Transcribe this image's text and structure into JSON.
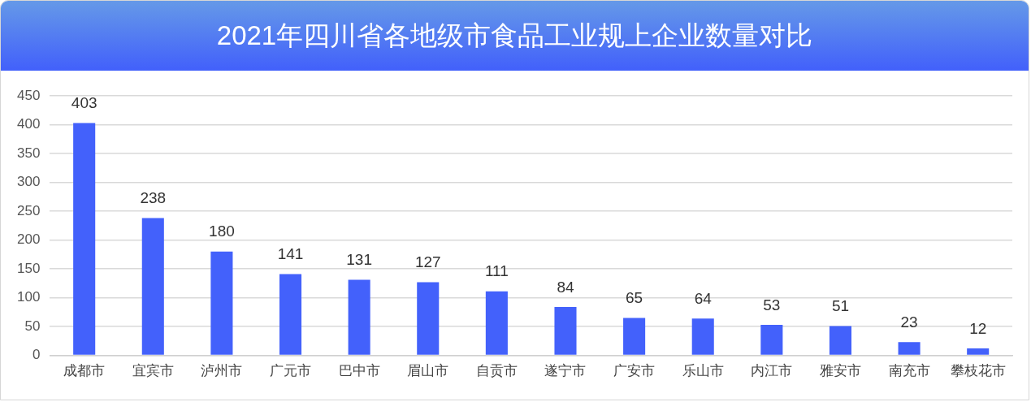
{
  "chart_data": {
    "type": "bar",
    "title": "2021年四川省各地级市食品工业规上企业数量对比",
    "categories": [
      "成都市",
      "宜宾市",
      "泸州市",
      "广元市",
      "巴中市",
      "眉山市",
      "自贡市",
      "遂宁市",
      "广安市",
      "乐山市",
      "内江市",
      "雅安市",
      "南充市",
      "攀枝花市"
    ],
    "values": [
      403,
      238,
      180,
      141,
      131,
      127,
      111,
      84,
      65,
      64,
      53,
      51,
      23,
      12
    ],
    "color": "#4361fb",
    "ylim": [
      0,
      450
    ],
    "yticks": [
      0,
      50,
      100,
      150,
      200,
      250,
      300,
      350,
      400,
      450
    ],
    "grid": "y",
    "legend": false,
    "data_labels": true
  }
}
